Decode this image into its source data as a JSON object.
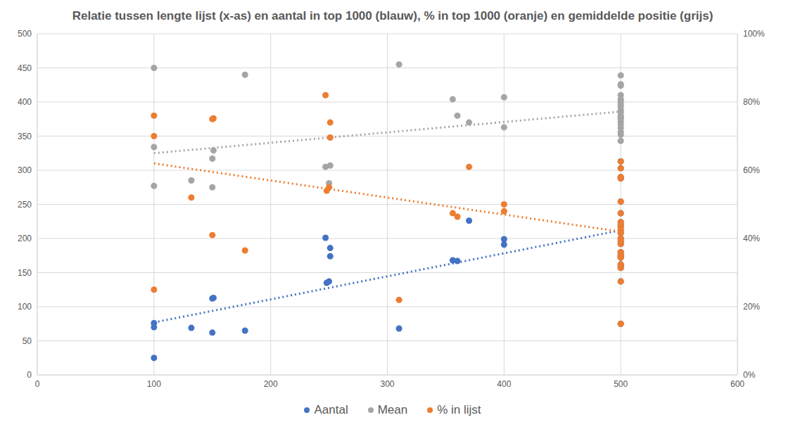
{
  "chart_data": {
    "type": "scatter",
    "title": "Relatie tussen lengte lijst (x-as) en aantal in top 1000 (blauw), % in top 1000 (oranje) en gemiddelde positie (grijs)",
    "xlim": [
      0,
      600
    ],
    "xticks": [
      0,
      100,
      200,
      300,
      400,
      500,
      600
    ],
    "ylim": [
      0,
      500
    ],
    "yticks": [
      0,
      50,
      100,
      150,
      200,
      250,
      300,
      350,
      400,
      450,
      500
    ],
    "y2lim": [
      0,
      100
    ],
    "y2ticks": [
      {
        "value": 0,
        "label": "0%"
      },
      {
        "value": 20,
        "label": "20%"
      },
      {
        "value": 40,
        "label": "40%"
      },
      {
        "value": 60,
        "label": "60%"
      },
      {
        "value": 80,
        "label": "80%"
      },
      {
        "value": 100,
        "label": "100%"
      }
    ],
    "grid": true,
    "legend": "bottom",
    "series": [
      {
        "name": "Aantal",
        "color": "#4472c4",
        "marker": "circle",
        "x": [
          100,
          100,
          100,
          132,
          150,
          151,
          150,
          178,
          247,
          251,
          251,
          248,
          250,
          310,
          356,
          360,
          370,
          400,
          400,
          500,
          500,
          500,
          500,
          500,
          500,
          500,
          500,
          500,
          500,
          500,
          500,
          500,
          500,
          500,
          500,
          500,
          500,
          500,
          500,
          500,
          500,
          500
        ],
        "values": [
          76,
          70,
          25,
          69,
          112,
          113,
          62,
          65,
          201,
          186,
          174,
          135,
          137,
          68,
          168,
          167,
          226,
          199,
          191,
          313,
          303,
          290,
          288,
          254,
          237,
          224,
          220,
          217,
          212,
          208,
          200,
          196,
          192,
          180,
          176,
          174,
          172,
          162,
          160,
          157,
          137,
          75
        ],
        "trend": {
          "x": [
            100,
            500
          ],
          "values": [
            77,
            212
          ],
          "line_style": "dotted"
        }
      },
      {
        "name": "Mean",
        "color": "#a5a5a5",
        "marker": "circle",
        "x": [
          100,
          100,
          100,
          132,
          150,
          151,
          150,
          178,
          247,
          251,
          250,
          310,
          356,
          360,
          370,
          400,
          400,
          500,
          500,
          500,
          500,
          500,
          500,
          500,
          500,
          500,
          500,
          500,
          500,
          500,
          500,
          500,
          500,
          500,
          500,
          500,
          500
        ],
        "values": [
          450,
          334,
          277,
          285,
          317,
          329,
          275,
          440,
          305,
          307,
          281,
          455,
          404,
          380,
          370,
          407,
          363,
          439,
          426,
          424,
          410,
          404,
          401,
          397,
          393,
          388,
          385,
          380,
          378,
          377,
          375,
          371,
          367,
          362,
          356,
          352,
          343
        ],
        "trend": {
          "x": [
            100,
            500
          ],
          "values": [
            325,
            386
          ],
          "line_style": "dotted"
        }
      },
      {
        "name": "% in lijst",
        "color": "#ed7d31",
        "marker": "circle",
        "axis": "y2",
        "x": [
          100,
          100,
          100,
          132,
          150,
          151,
          150,
          178,
          247,
          251,
          251,
          248,
          250,
          310,
          356,
          360,
          370,
          400,
          400,
          500,
          500,
          500,
          500,
          500,
          500,
          500,
          500,
          500,
          500,
          500,
          500,
          500,
          500,
          500,
          500,
          500,
          500,
          500,
          500,
          500,
          500,
          500
        ],
        "values": [
          76,
          70,
          25,
          52,
          75,
          75.2,
          41,
          36.5,
          82,
          74,
          69.6,
          54,
          55,
          22,
          47.4,
          46.4,
          61,
          50,
          48,
          62.6,
          60.6,
          58,
          57.6,
          50.8,
          47.4,
          44.8,
          44,
          43.4,
          42.4,
          41.6,
          40,
          39.2,
          38.4,
          36,
          35.2,
          34.8,
          34.4,
          32.4,
          32,
          31.4,
          27.4,
          15
        ],
        "trend": {
          "x": [
            100,
            500
          ],
          "values": [
            62,
            42
          ],
          "line_style": "dotted"
        }
      }
    ]
  }
}
